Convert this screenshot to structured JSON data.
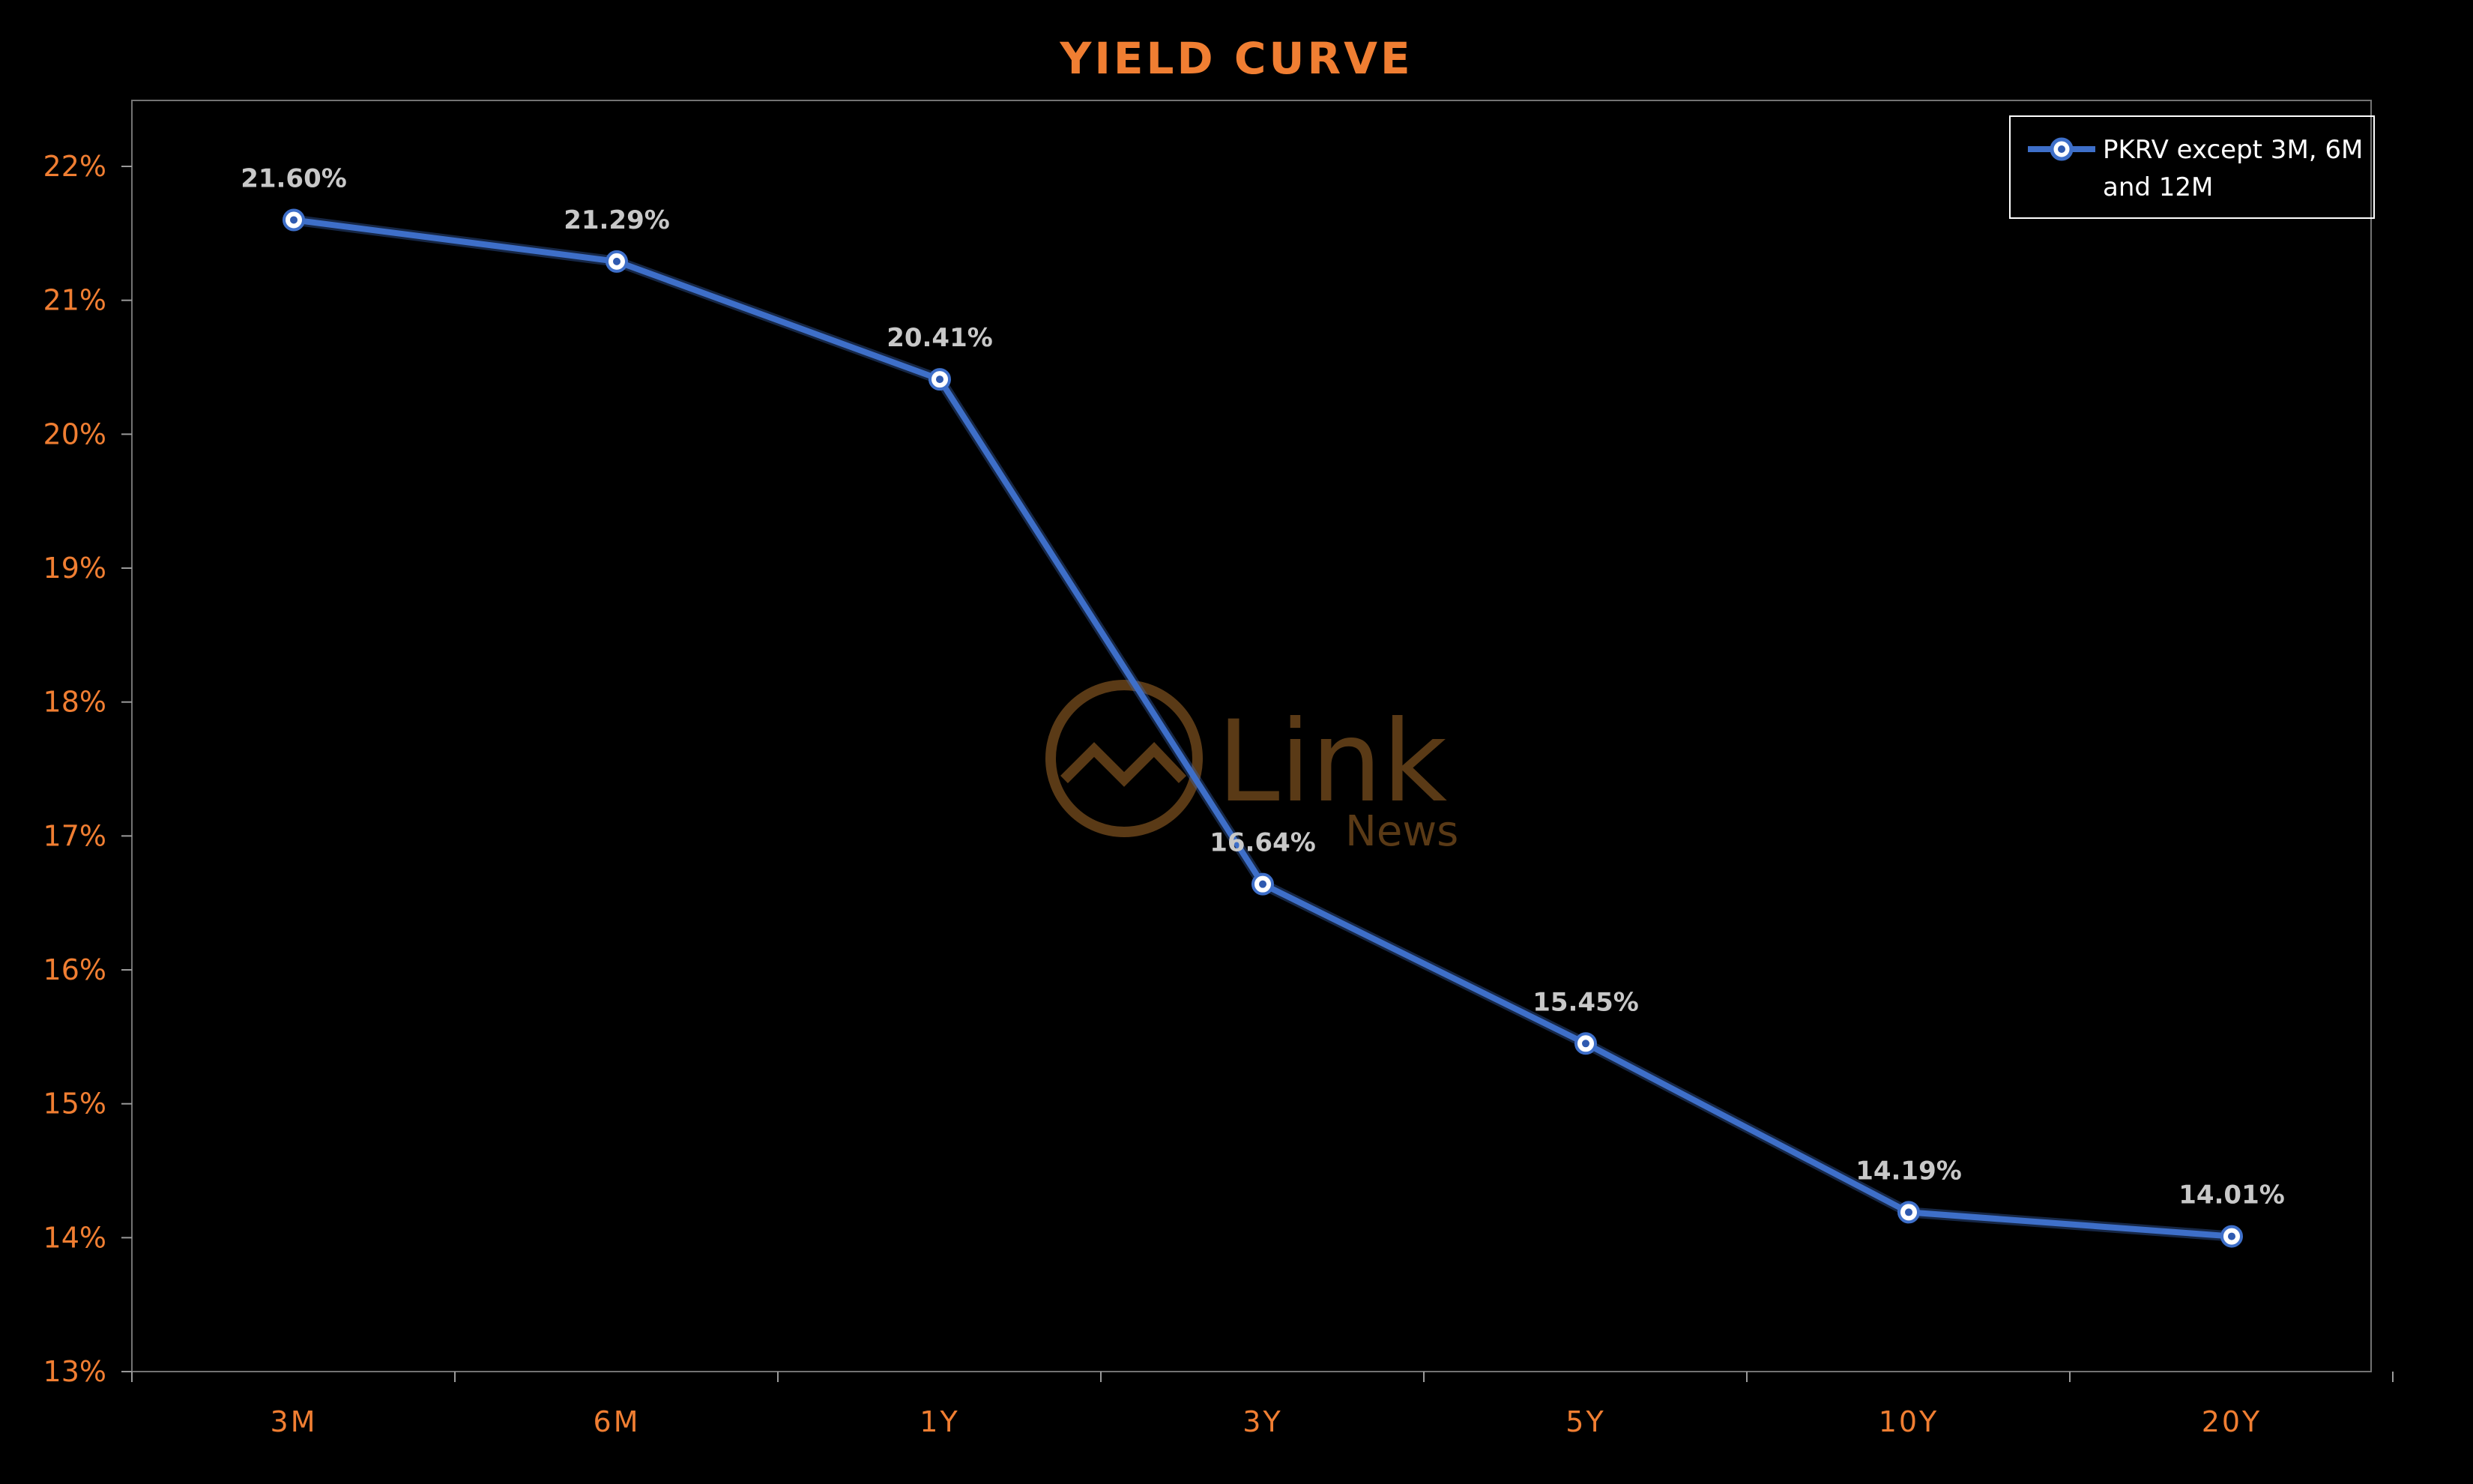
{
  "chart_data": {
    "type": "line",
    "title": "YIELD CURVE",
    "categories": [
      "3M",
      "6M",
      "1Y",
      "3Y",
      "5Y",
      "10Y",
      "20Y"
    ],
    "series": [
      {
        "name": "PKRV except 3M, 6M and 12M",
        "values": [
          21.6,
          21.29,
          20.41,
          16.64,
          15.45,
          14.19,
          14.01
        ],
        "labels": [
          "21.60%",
          "21.29%",
          "20.41%",
          "16.64%",
          "15.45%",
          "14.19%",
          "14.01%"
        ]
      }
    ],
    "legend_lines": [
      "PKRV except 3M, 6M",
      "and 12M"
    ],
    "legend_position": "top-right",
    "ylim": [
      13,
      22
    ],
    "yticks": [
      13,
      14,
      15,
      16,
      17,
      18,
      19,
      20,
      21,
      22
    ],
    "ytick_labels": [
      "13%",
      "14%",
      "15%",
      "16%",
      "17%",
      "18%",
      "19%",
      "20%",
      "21%",
      "22%"
    ],
    "xlabel": "",
    "ylabel": "",
    "grid": false,
    "drop_lines": true
  },
  "watermark": {
    "text": "Link",
    "subtext": "News"
  },
  "colors": {
    "background": "#000000",
    "title": "#f07e32",
    "tick_labels": "#f07e32",
    "axis": "#9a9a9a",
    "series_line": "#3e6fc9",
    "marker_fill": "#ffffff",
    "marker_center": "#2f5ab0",
    "data_labels": "#c8c8c8",
    "drop_line": "#ffffff",
    "legend_border": "#ffffff",
    "legend_text": "#ffffff",
    "watermark": "#5a3a16"
  }
}
